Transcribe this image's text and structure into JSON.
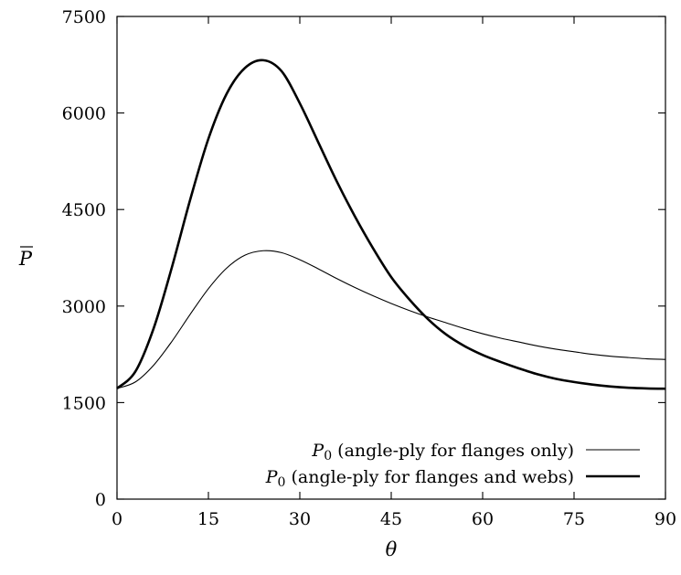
{
  "chart_data": {
    "type": "line",
    "xlabel": "θ",
    "ylabel": "P̄",
    "xlim": [
      0,
      90
    ],
    "ylim": [
      0,
      7500
    ],
    "xticks": [
      0,
      15,
      30,
      45,
      60,
      75,
      90
    ],
    "yticks": [
      0,
      1500,
      3000,
      4500,
      6000,
      7500
    ],
    "grid": false,
    "legend_position": "bottom-right",
    "series": [
      {
        "name": "P0 (angle-ply for flanges only)",
        "name_parts": {
          "base": "P",
          "sub": "0",
          "rest": " (angle-ply for flanges only)"
        },
        "line_weight": "thin",
        "x": [
          0,
          3,
          6,
          9,
          12,
          15,
          18,
          21,
          24,
          27,
          30,
          33,
          36,
          39,
          42,
          45,
          48,
          51,
          54,
          57,
          60,
          63,
          66,
          69,
          72,
          75,
          78,
          81,
          84,
          87,
          90
        ],
        "y": [
          1720,
          1820,
          2080,
          2450,
          2870,
          3270,
          3590,
          3790,
          3860,
          3830,
          3720,
          3580,
          3430,
          3290,
          3160,
          3040,
          2930,
          2830,
          2740,
          2650,
          2570,
          2500,
          2440,
          2380,
          2330,
          2290,
          2250,
          2220,
          2200,
          2180,
          2170
        ]
      },
      {
        "name": "P0 (angle-ply for flanges and webs)",
        "name_parts": {
          "base": "P",
          "sub": "0",
          "rest": " (angle-ply for flanges and webs)"
        },
        "line_weight": "thick",
        "x": [
          0,
          3,
          6,
          9,
          12,
          15,
          18,
          21,
          24,
          27,
          30,
          33,
          36,
          39,
          42,
          45,
          48,
          51,
          54,
          57,
          60,
          63,
          66,
          69,
          72,
          75,
          78,
          81,
          84,
          87,
          90
        ],
        "y": [
          1720,
          1980,
          2650,
          3600,
          4650,
          5600,
          6300,
          6700,
          6820,
          6650,
          6150,
          5550,
          4950,
          4400,
          3900,
          3450,
          3100,
          2800,
          2560,
          2380,
          2240,
          2130,
          2030,
          1940,
          1870,
          1820,
          1780,
          1750,
          1730,
          1720,
          1715
        ]
      }
    ]
  }
}
